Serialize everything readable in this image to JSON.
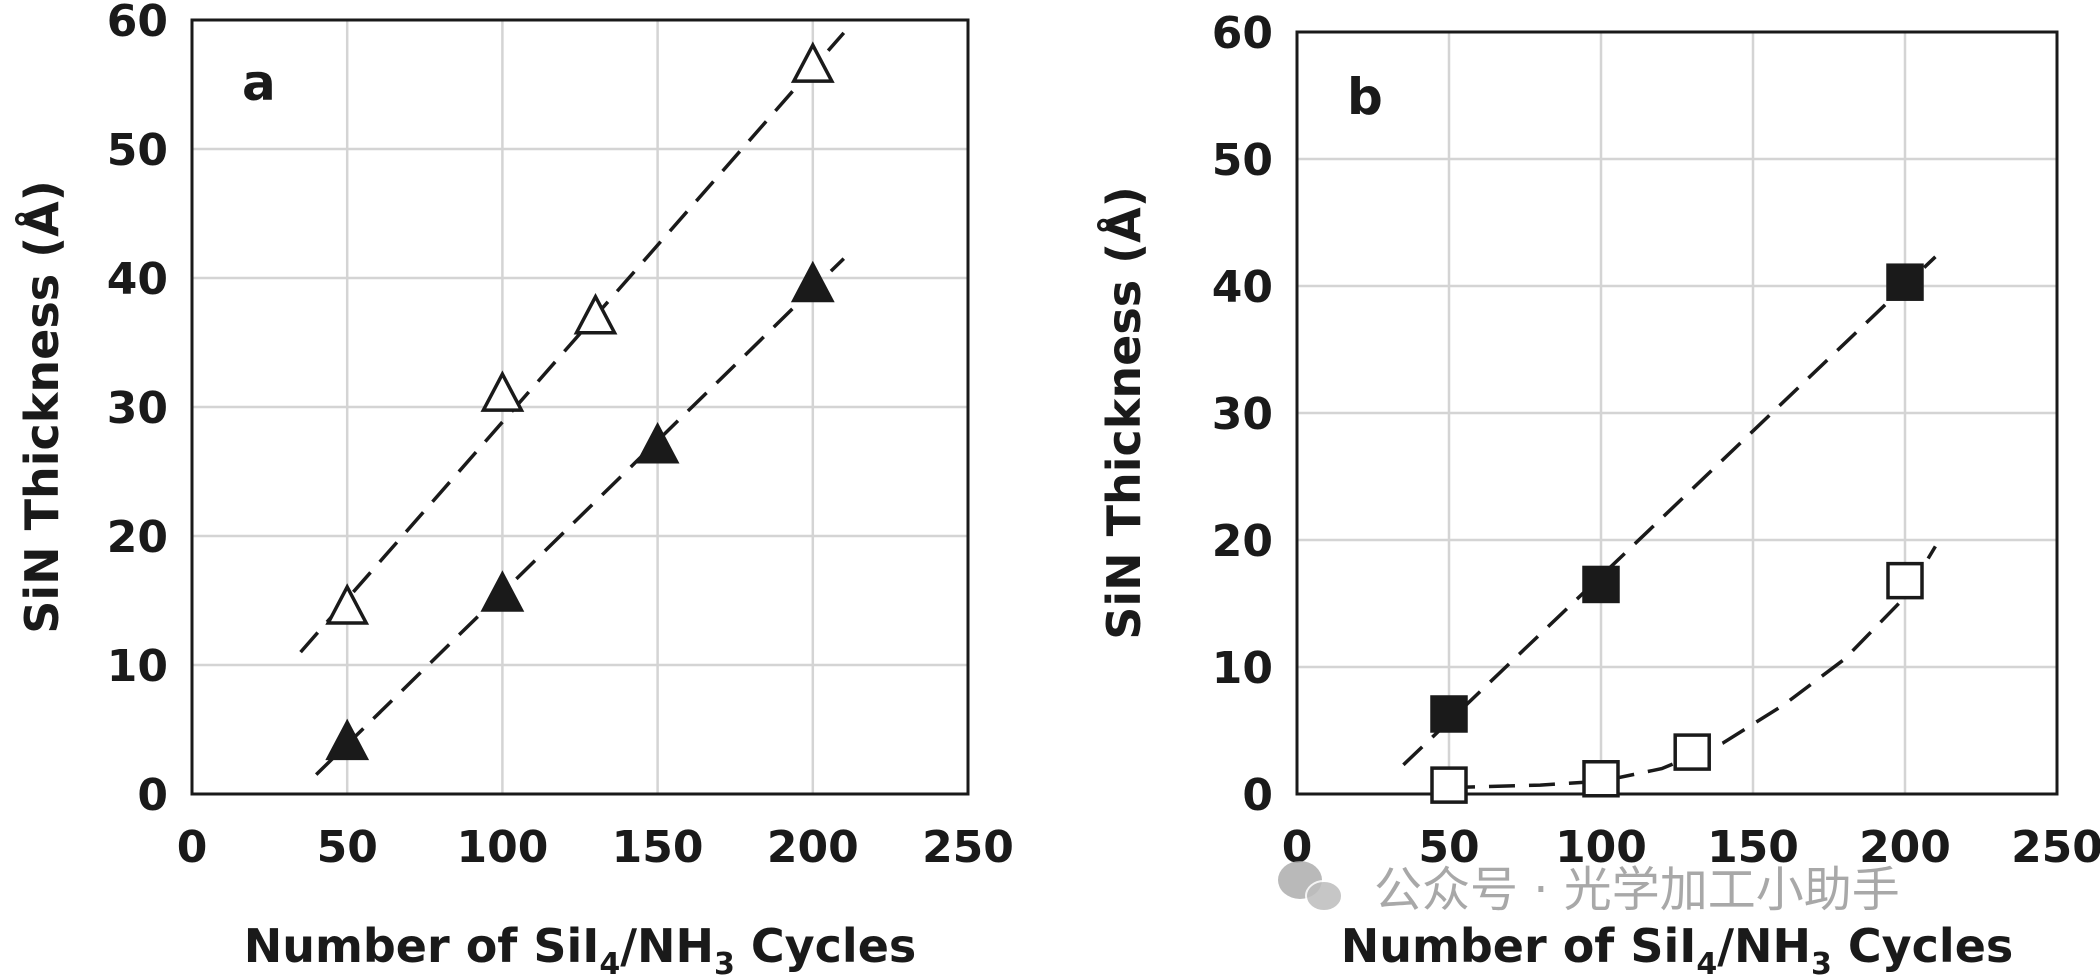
{
  "watermark": {
    "text": "公众号 · 光学加工小助手",
    "icon": "wechat-icon"
  },
  "chart_data": [
    {
      "type": "scatter",
      "panel_label": "a",
      "xlabel_parts": [
        "Number of SiI",
        "4",
        "/NH",
        "3",
        " Cycles"
      ],
      "ylabel": "SiN Thickness (Å)",
      "xlim": [
        0,
        250
      ],
      "ylim": [
        0,
        60
      ],
      "xticks": [
        0,
        50,
        100,
        150,
        200,
        250
      ],
      "yticks": [
        0,
        10,
        20,
        30,
        40,
        50,
        60
      ],
      "grid": true,
      "series": [
        {
          "marker": "triangle-open",
          "points": [
            [
              50,
              14.5
            ],
            [
              100,
              31
            ],
            [
              130,
              37
            ],
            [
              200,
              56.5
            ]
          ],
          "fit": {
            "kind": "linear",
            "x_range": [
              35,
              210
            ],
            "points": [
              [
                35,
                11
              ],
              [
                210,
                59
              ]
            ]
          }
        },
        {
          "marker": "triangle-filled",
          "points": [
            [
              50,
              4
            ],
            [
              100,
              15.5
            ],
            [
              150,
              27
            ],
            [
              200,
              39.5
            ]
          ],
          "fit": {
            "kind": "linear",
            "x_range": [
              40,
              210
            ],
            "points": [
              [
                40,
                1.5
              ],
              [
                210,
                41.5
              ]
            ]
          }
        }
      ]
    },
    {
      "type": "scatter",
      "panel_label": "b",
      "xlabel_parts": [
        "Number of SiI",
        "4",
        "/NH",
        "3",
        " Cycles"
      ],
      "ylabel": "SiN Thickness (Å)",
      "xlim": [
        0,
        250
      ],
      "ylim": [
        0,
        60
      ],
      "xticks": [
        0,
        50,
        100,
        150,
        200,
        250
      ],
      "yticks": [
        0,
        10,
        20,
        30,
        40,
        50,
        60
      ],
      "grid": true,
      "series": [
        {
          "marker": "square-filled",
          "points": [
            [
              50,
              6.3
            ],
            [
              100,
              16.5
            ],
            [
              200,
              40.3
            ]
          ],
          "fit": {
            "kind": "linear",
            "x_range": [
              35,
              210
            ],
            "points": [
              [
                35,
                2.3
              ],
              [
                210,
                42.3
              ]
            ]
          }
        },
        {
          "marker": "square-open",
          "points": [
            [
              50,
              0.7
            ],
            [
              100,
              1.2
            ],
            [
              130,
              3.3
            ],
            [
              200,
              16.8
            ]
          ],
          "fit": {
            "kind": "curve",
            "x_range": [
              50,
              210
            ],
            "points": [
              [
                50,
                0.5
              ],
              [
                80,
                0.7
              ],
              [
                100,
                1.0
              ],
              [
                120,
                2.0
              ],
              [
                140,
                4.0
              ],
              [
                160,
                7.0
              ],
              [
                180,
                10.6
              ],
              [
                200,
                15.5
              ],
              [
                210,
                19.5
              ]
            ]
          }
        }
      ]
    }
  ]
}
